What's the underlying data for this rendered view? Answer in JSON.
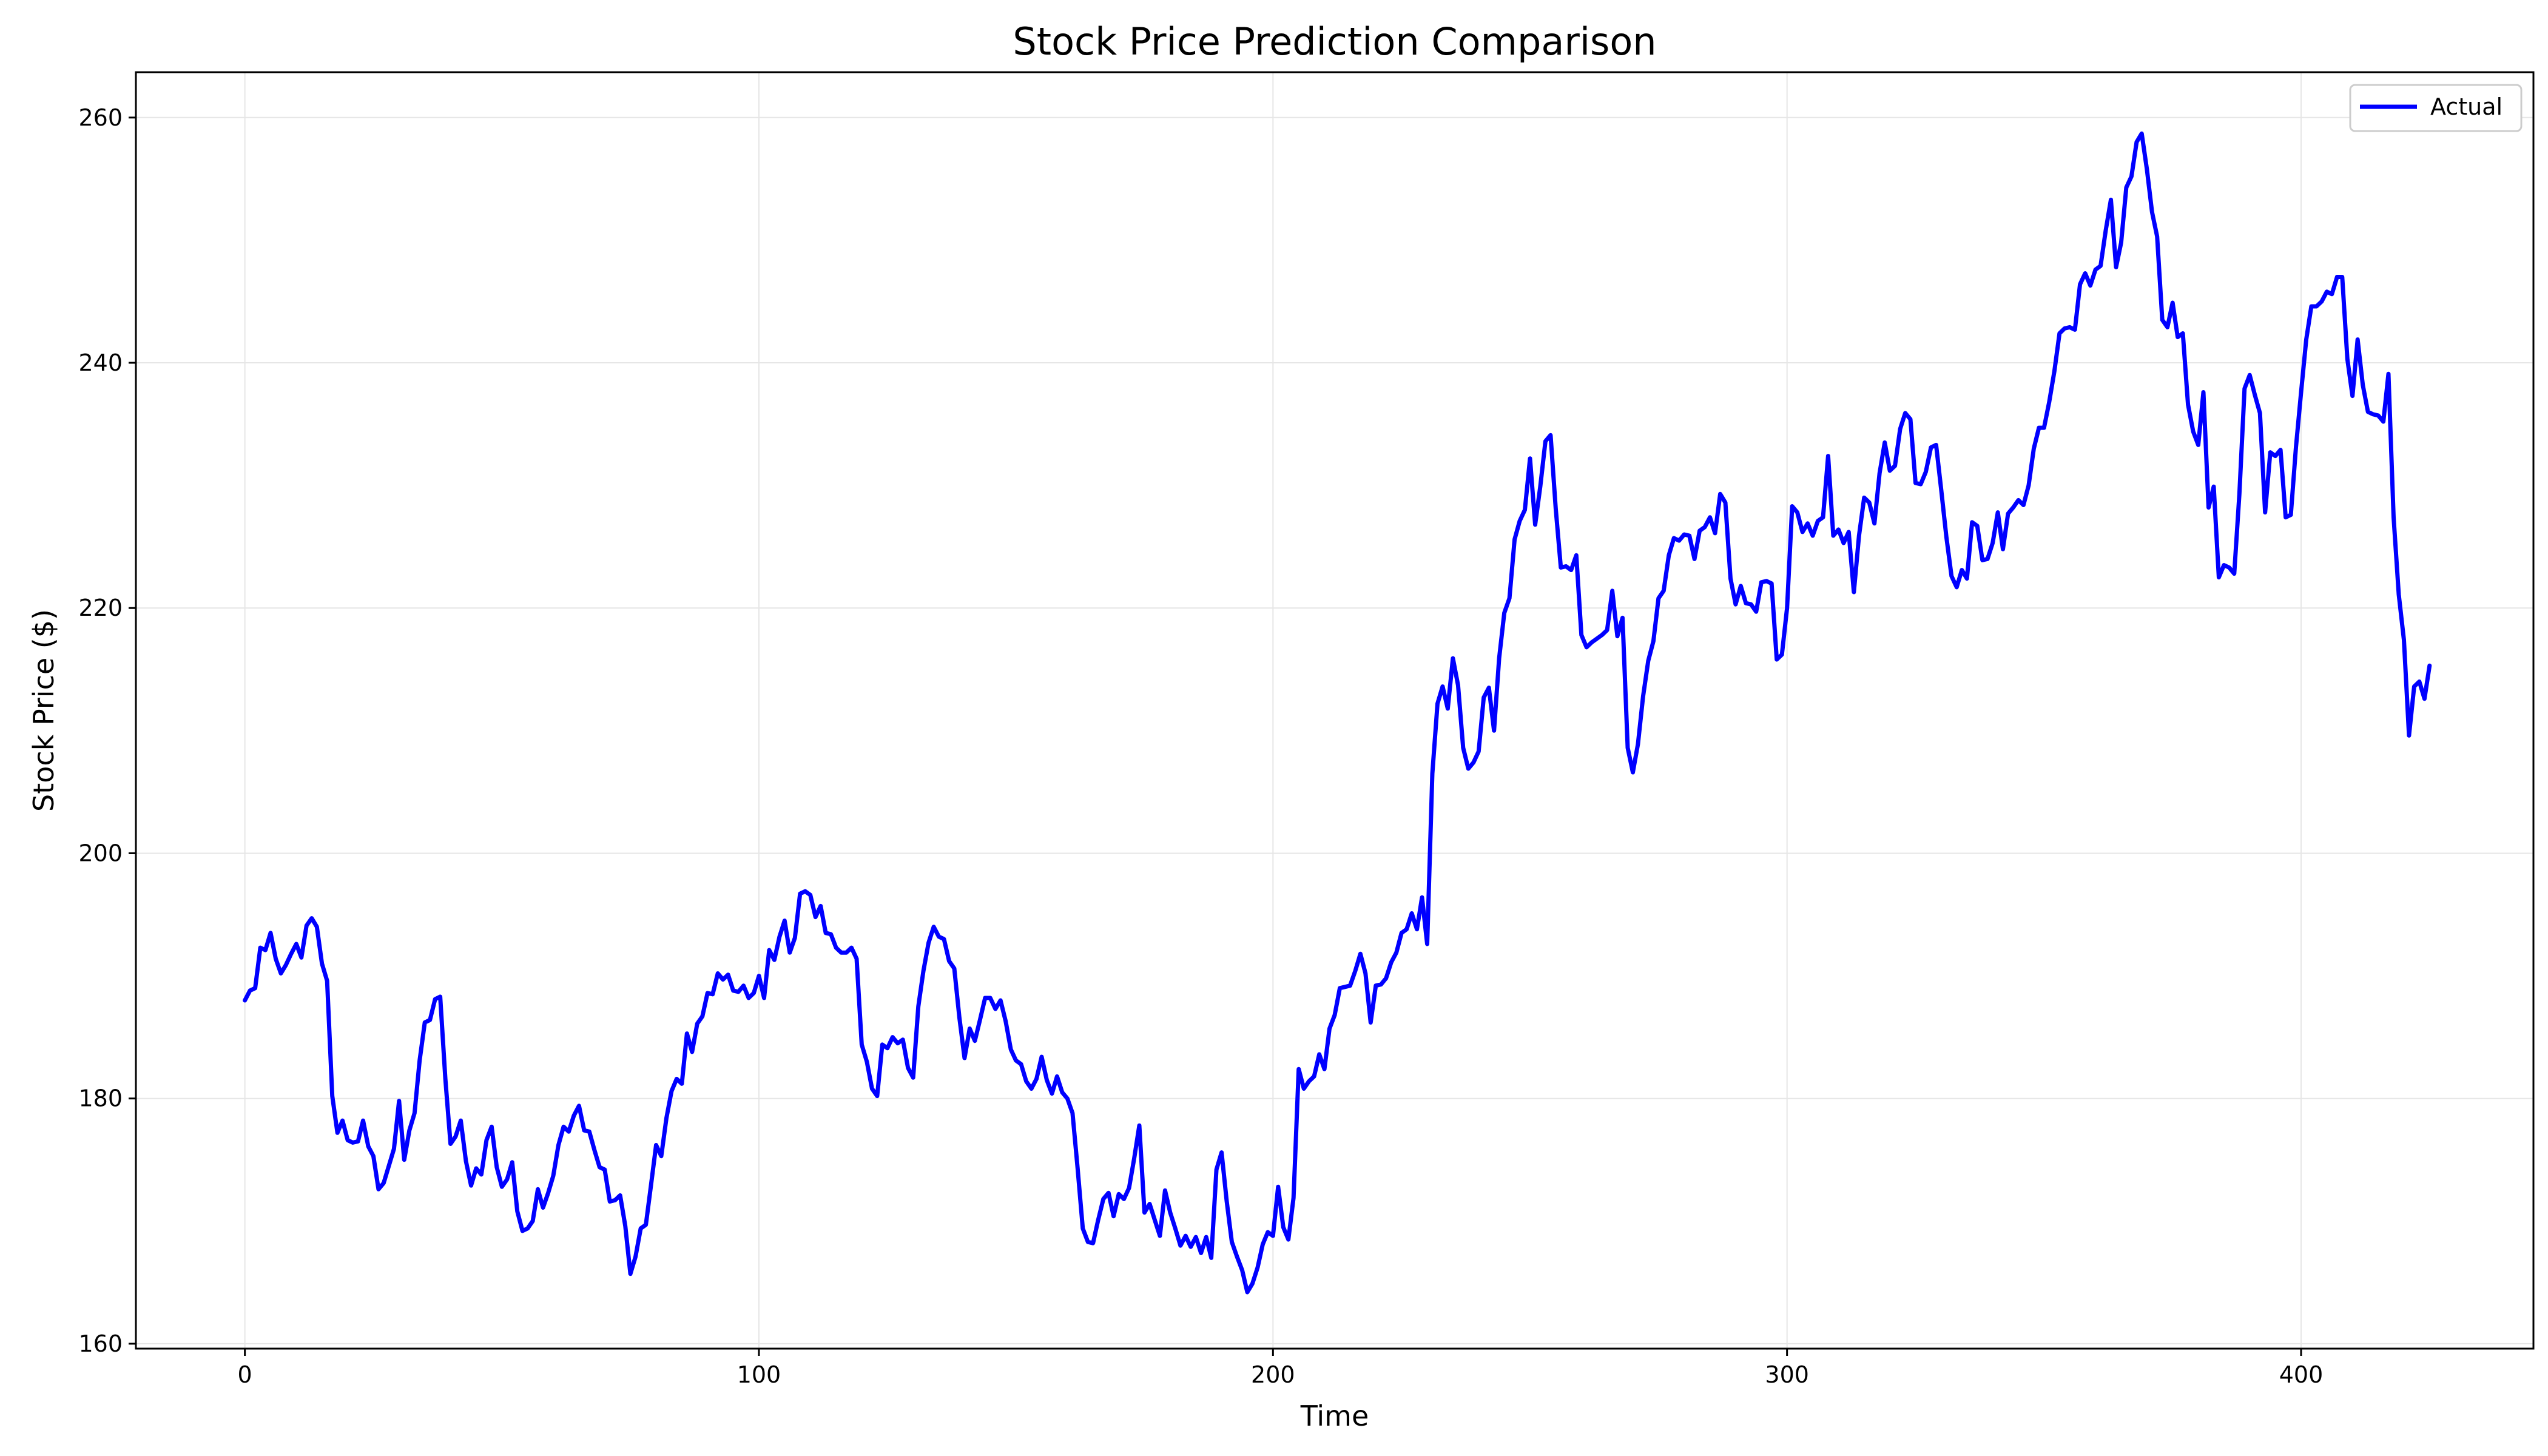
{
  "chart_data": {
    "type": "line",
    "title": "Stock Price Prediction Comparison",
    "xlabel": "Time",
    "ylabel": "Stock Price ($)",
    "xlim": [
      -21.2,
      445.2
    ],
    "ylim": [
      159.6,
      263.7
    ],
    "xticks": [
      0,
      100,
      200,
      300,
      400
    ],
    "yticks": [
      160,
      180,
      200,
      220,
      240,
      260
    ],
    "grid": true,
    "legend_position": "top-right",
    "series": [
      {
        "name": "Actual",
        "color": "#0000ff",
        "x_start": 0,
        "x_step": 1,
        "values": [
          188.0,
          188.8,
          189.0,
          192.3,
          192.1,
          193.5,
          191.4,
          190.2,
          190.9,
          191.8,
          192.6,
          191.5,
          194.1,
          194.7,
          194.0,
          191.0,
          189.6,
          180.2,
          177.2,
          178.2,
          176.6,
          176.4,
          176.5,
          178.2,
          176.1,
          175.3,
          172.6,
          173.1,
          174.5,
          175.9,
          179.8,
          175.0,
          177.4,
          178.8,
          183.1,
          186.2,
          186.4,
          188.1,
          188.3,
          181.6,
          176.3,
          176.9,
          178.2,
          174.9,
          172.9,
          174.3,
          173.8,
          176.6,
          177.7,
          174.4,
          172.8,
          173.4,
          174.8,
          170.8,
          169.2,
          169.4,
          170.0,
          172.6,
          171.1,
          172.3,
          173.7,
          176.2,
          177.7,
          177.3,
          178.6,
          179.4,
          177.4,
          177.3,
          175.8,
          174.4,
          174.2,
          171.6,
          171.7,
          172.1,
          169.6,
          165.7,
          167.1,
          169.4,
          169.7,
          172.9,
          176.2,
          175.3,
          178.4,
          180.6,
          181.6,
          181.2,
          185.3,
          183.8,
          186.1,
          186.7,
          188.6,
          188.5,
          190.2,
          189.7,
          190.1,
          188.8,
          188.7,
          189.2,
          188.2,
          188.6,
          190.0,
          188.2,
          192.1,
          191.3,
          193.2,
          194.5,
          191.9,
          193.1,
          196.7,
          196.9,
          196.6,
          194.8,
          195.7,
          193.5,
          193.4,
          192.3,
          191.9,
          191.9,
          192.3,
          191.4,
          184.4,
          183.0,
          180.8,
          180.2,
          184.4,
          184.1,
          185.0,
          184.5,
          184.8,
          182.5,
          181.7,
          187.5,
          190.4,
          192.7,
          194.0,
          193.2,
          193.0,
          191.2,
          190.6,
          186.6,
          183.3,
          185.7,
          184.7,
          186.4,
          188.2,
          188.2,
          187.3,
          188.0,
          186.3,
          184.0,
          183.1,
          182.8,
          181.4,
          180.8,
          181.6,
          183.4,
          181.5,
          180.4,
          181.8,
          180.5,
          180.0,
          178.8,
          174.3,
          169.4,
          168.3,
          168.2,
          170.1,
          171.8,
          172.3,
          170.4,
          172.2,
          171.8,
          172.7,
          175.1,
          177.8,
          170.7,
          171.4,
          170.1,
          168.8,
          172.5,
          170.7,
          169.4,
          168.0,
          168.8,
          167.9,
          168.7,
          167.4,
          168.7,
          167.0,
          174.2,
          175.6,
          171.6,
          168.3,
          167.1,
          166.0,
          164.2,
          164.9,
          166.2,
          168.1,
          169.1,
          168.8,
          172.8,
          169.5,
          168.5,
          171.9,
          182.4,
          180.8,
          181.4,
          181.8,
          183.6,
          182.4,
          185.7,
          186.8,
          189.0,
          189.1,
          189.2,
          190.4,
          191.8,
          190.2,
          186.2,
          189.2,
          189.3,
          189.8,
          191.1,
          191.9,
          193.5,
          193.8,
          195.1,
          193.8,
          196.4,
          192.6,
          206.5,
          212.2,
          213.6,
          211.8,
          215.9,
          213.7,
          208.6,
          206.9,
          207.4,
          208.3,
          212.7,
          213.5,
          210.0,
          215.9,
          219.6,
          220.8,
          225.6,
          227.1,
          228.0,
          232.2,
          226.8,
          229.9,
          233.6,
          234.1,
          228.1,
          223.3,
          223.4,
          223.1,
          224.3,
          217.8,
          216.8,
          217.2,
          217.5,
          217.8,
          218.2,
          221.4,
          217.7,
          219.2,
          208.6,
          206.6,
          208.9,
          212.8,
          215.7,
          217.3,
          220.8,
          221.4,
          224.3,
          225.7,
          225.5,
          226.0,
          225.9,
          224.0,
          226.3,
          226.6,
          227.4,
          226.1,
          229.3,
          228.6,
          222.4,
          220.3,
          221.8,
          220.4,
          220.3,
          219.7,
          222.1,
          222.2,
          222.0,
          215.8,
          216.2,
          220.0,
          228.3,
          227.8,
          226.2,
          226.9,
          225.9,
          227.1,
          227.4,
          232.4,
          225.9,
          226.4,
          225.3,
          226.2,
          221.3,
          225.9,
          229.0,
          228.6,
          226.9,
          231.0,
          233.5,
          231.2,
          231.6,
          234.6,
          235.9,
          235.4,
          230.2,
          230.1,
          231.1,
          233.1,
          233.3,
          229.6,
          225.8,
          222.6,
          221.7,
          223.1,
          222.4,
          227.0,
          226.7,
          223.9,
          224.0,
          225.3,
          227.8,
          224.8,
          227.7,
          228.2,
          228.8,
          228.4,
          230.0,
          233.0,
          234.7,
          234.7,
          236.8,
          239.3,
          242.4,
          242.8,
          242.9,
          242.7,
          246.4,
          247.3,
          246.3,
          247.6,
          247.9,
          250.8,
          253.3,
          247.8,
          249.8,
          254.3,
          255.2,
          258.0,
          258.7,
          255.8,
          252.3,
          250.3,
          243.5,
          242.9,
          244.9,
          242.1,
          242.4,
          236.6,
          234.4,
          233.3,
          237.6,
          228.2,
          229.9,
          222.5,
          223.5,
          223.3,
          222.8,
          229.3,
          237.9,
          239.0,
          237.4,
          235.9,
          227.8,
          232.7,
          232.4,
          232.9,
          227.4,
          227.6,
          233.1,
          237.6,
          241.9,
          244.6,
          244.6,
          245.0,
          245.8,
          245.6,
          247.0,
          247.0,
          240.3,
          237.3,
          241.9,
          238.2,
          236.0,
          235.8,
          235.7,
          235.2,
          239.1,
          227.4,
          221.1,
          217.4,
          209.6,
          213.6,
          214.0,
          212.6,
          215.3
        ]
      }
    ]
  }
}
